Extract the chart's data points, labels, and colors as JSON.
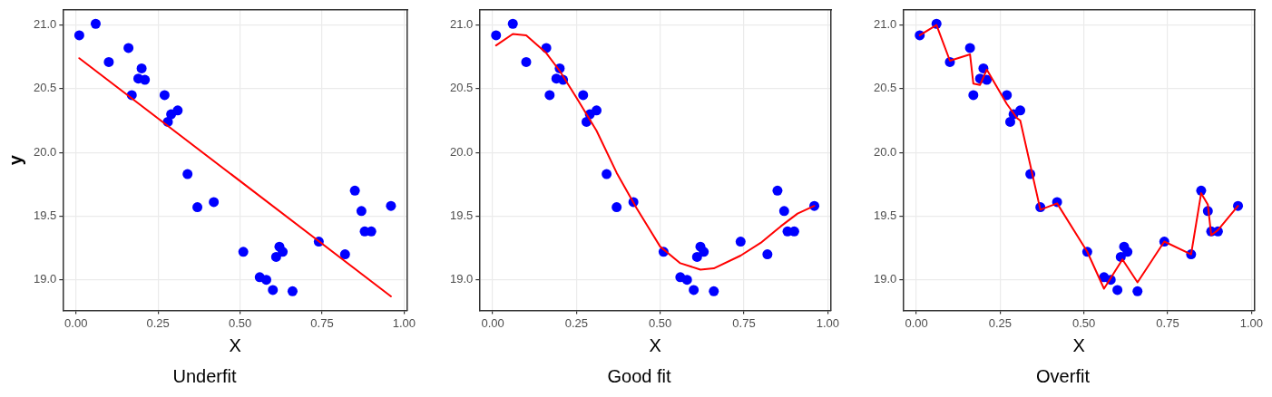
{
  "chart_data": [
    {
      "type": "scatter",
      "title": "Underfit",
      "xlabel": "X",
      "ylabel": "y",
      "xlim": [
        -0.04,
        1.01
      ],
      "ylim": [
        18.76,
        21.12
      ],
      "xticks": [
        {
          "value": 0,
          "label": "0.00"
        },
        {
          "value": 0.25,
          "label": "0.25"
        },
        {
          "value": 0.5,
          "label": "0.50"
        },
        {
          "value": 0.75,
          "label": "0.75"
        },
        {
          "value": 1,
          "label": "1.00"
        }
      ],
      "yticks": [
        {
          "value": 19,
          "label": "19.0"
        },
        {
          "value": 19.5,
          "label": "19.5"
        },
        {
          "value": 20,
          "label": "20.0"
        },
        {
          "value": 20.5,
          "label": "20.5"
        },
        {
          "value": 21,
          "label": "21.0"
        }
      ],
      "grid": true,
      "legend": false,
      "series": [
        {
          "color": "#0000ff",
          "marker": "circle",
          "x": [
            0.01,
            0.06,
            0.1,
            0.16,
            0.17,
            0.19,
            0.2,
            0.21,
            0.27,
            0.28,
            0.29,
            0.31,
            0.34,
            0.37,
            0.42,
            0.51,
            0.56,
            0.58,
            0.6,
            0.61,
            0.62,
            0.63,
            0.66,
            0.74,
            0.82,
            0.85,
            0.87,
            0.88,
            0.9,
            0.96
          ],
          "values": [
            20.92,
            21.01,
            20.71,
            20.82,
            20.45,
            20.58,
            20.66,
            20.57,
            20.45,
            20.24,
            20.3,
            20.33,
            19.83,
            19.57,
            19.61,
            19.22,
            19.02,
            19.0,
            18.92,
            19.18,
            19.26,
            19.22,
            18.91,
            19.3,
            19.2,
            19.7,
            19.54,
            19.38,
            19.38,
            19.58
          ]
        },
        {
          "type": "line",
          "color": "#ff0000",
          "marker": "none",
          "line_style": "solid",
          "x": [
            0.01,
            0.96
          ],
          "values": [
            20.74,
            18.87
          ]
        }
      ]
    },
    {
      "type": "scatter",
      "title": "Good fit",
      "xlabel": "X",
      "xlim": [
        -0.04,
        1.01
      ],
      "ylim": [
        18.76,
        21.12
      ],
      "xticks": [
        {
          "value": 0,
          "label": "0.00"
        },
        {
          "value": 0.25,
          "label": "0.25"
        },
        {
          "value": 0.5,
          "label": "0.50"
        },
        {
          "value": 0.75,
          "label": "0.75"
        },
        {
          "value": 1,
          "label": "1.00"
        }
      ],
      "yticks": [
        {
          "value": 19,
          "label": "19.0"
        },
        {
          "value": 19.5,
          "label": "19.5"
        },
        {
          "value": 20,
          "label": "20.0"
        },
        {
          "value": 20.5,
          "label": "20.5"
        },
        {
          "value": 21,
          "label": "21.0"
        }
      ],
      "grid": true,
      "legend": false,
      "series": [
        {
          "color": "#0000ff",
          "marker": "circle",
          "x": [
            0.01,
            0.06,
            0.1,
            0.16,
            0.17,
            0.19,
            0.2,
            0.21,
            0.27,
            0.28,
            0.29,
            0.31,
            0.34,
            0.37,
            0.42,
            0.51,
            0.56,
            0.58,
            0.6,
            0.61,
            0.62,
            0.63,
            0.66,
            0.74,
            0.82,
            0.85,
            0.87,
            0.88,
            0.9,
            0.96
          ],
          "values": [
            20.92,
            21.01,
            20.71,
            20.82,
            20.45,
            20.58,
            20.66,
            20.57,
            20.45,
            20.24,
            20.3,
            20.33,
            19.83,
            19.57,
            19.61,
            19.22,
            19.02,
            19.0,
            18.92,
            19.18,
            19.26,
            19.22,
            18.91,
            19.3,
            19.2,
            19.7,
            19.54,
            19.38,
            19.38,
            19.58
          ]
        },
        {
          "type": "line",
          "color": "#ff0000",
          "marker": "none",
          "line_style": "solid",
          "x": [
            0.01,
            0.06,
            0.1,
            0.16,
            0.2,
            0.25,
            0.31,
            0.37,
            0.43,
            0.5,
            0.56,
            0.62,
            0.66,
            0.74,
            0.8,
            0.86,
            0.91,
            0.96
          ],
          "values": [
            20.84,
            20.93,
            20.92,
            20.78,
            20.64,
            20.43,
            20.17,
            19.84,
            19.56,
            19.26,
            19.13,
            19.08,
            19.09,
            19.19,
            19.29,
            19.42,
            19.52,
            19.58
          ]
        }
      ]
    },
    {
      "type": "scatter",
      "title": "Overfit",
      "xlabel": "X",
      "xlim": [
        -0.04,
        1.01
      ],
      "ylim": [
        18.76,
        21.12
      ],
      "xticks": [
        {
          "value": 0,
          "label": "0.00"
        },
        {
          "value": 0.25,
          "label": "0.25"
        },
        {
          "value": 0.5,
          "label": "0.50"
        },
        {
          "value": 0.75,
          "label": "0.75"
        },
        {
          "value": 1,
          "label": "1.00"
        }
      ],
      "yticks": [
        {
          "value": 19,
          "label": "19.0"
        },
        {
          "value": 19.5,
          "label": "19.5"
        },
        {
          "value": 20,
          "label": "20.0"
        },
        {
          "value": 20.5,
          "label": "20.5"
        },
        {
          "value": 21,
          "label": "21.0"
        }
      ],
      "grid": true,
      "legend": false,
      "series": [
        {
          "color": "#0000ff",
          "marker": "circle",
          "x": [
            0.01,
            0.06,
            0.1,
            0.16,
            0.17,
            0.19,
            0.2,
            0.21,
            0.27,
            0.28,
            0.29,
            0.31,
            0.34,
            0.37,
            0.42,
            0.51,
            0.56,
            0.58,
            0.6,
            0.61,
            0.62,
            0.63,
            0.66,
            0.74,
            0.82,
            0.85,
            0.87,
            0.88,
            0.9,
            0.96
          ],
          "values": [
            20.92,
            21.01,
            20.71,
            20.82,
            20.45,
            20.58,
            20.66,
            20.57,
            20.45,
            20.24,
            20.3,
            20.33,
            19.83,
            19.57,
            19.61,
            19.22,
            19.02,
            19.0,
            18.92,
            19.18,
            19.26,
            19.22,
            18.91,
            19.3,
            19.2,
            19.7,
            19.54,
            19.38,
            19.38,
            19.58
          ]
        },
        {
          "type": "line",
          "color": "#ff0000",
          "marker": "none",
          "line_style": "solid",
          "x": [
            0.01,
            0.06,
            0.1,
            0.16,
            0.17,
            0.19,
            0.21,
            0.27,
            0.3,
            0.31,
            0.37,
            0.42,
            0.51,
            0.56,
            0.615,
            0.66,
            0.74,
            0.82,
            0.85,
            0.87,
            0.88,
            0.9,
            0.96
          ],
          "values": [
            20.92,
            21.0,
            20.72,
            20.77,
            20.54,
            20.53,
            20.65,
            20.38,
            20.27,
            20.25,
            19.55,
            19.6,
            19.22,
            18.93,
            19.16,
            18.98,
            19.3,
            19.2,
            19.68,
            19.59,
            19.35,
            19.39,
            19.58
          ]
        }
      ]
    }
  ]
}
